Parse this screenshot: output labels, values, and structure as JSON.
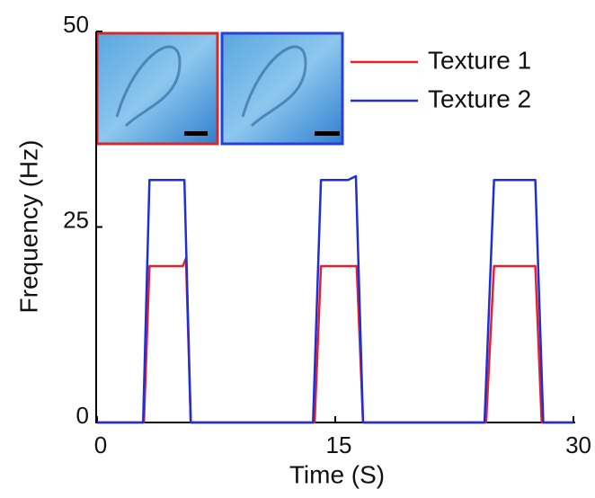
{
  "chart_data": {
    "type": "line",
    "xlabel": "Time (S)",
    "ylabel": "Frequency (Hz)",
    "xlim": [
      0,
      30
    ],
    "xticks": [
      0,
      15,
      30
    ],
    "ylim": [
      0,
      50
    ],
    "yticks": [
      0,
      25,
      50
    ],
    "legend": "top-right",
    "series": [
      {
        "name": "Texture 1",
        "color": "#e8202a",
        "x": [
          0,
          2.95,
          3.3,
          5.4,
          5.6,
          5.9,
          13.7,
          14.1,
          16.35,
          16.75,
          24.5,
          25,
          27.6,
          28,
          30
        ],
        "values": [
          0,
          0,
          20,
          20,
          21,
          0,
          0,
          20,
          20,
          0,
          0,
          20,
          20,
          0,
          0
        ]
      },
      {
        "name": "Texture 2",
        "color": "#1f2fd8",
        "x": [
          0,
          2.9,
          3.3,
          5.5,
          5.9,
          13.6,
          14.1,
          15.8,
          16.3,
          16.75,
          24.4,
          25,
          27.6,
          28.1,
          30
        ],
        "values": [
          0,
          0,
          31,
          31,
          0,
          0,
          31,
          31,
          31.5,
          0,
          0,
          31,
          31,
          0,
          0
        ]
      }
    ]
  }
}
